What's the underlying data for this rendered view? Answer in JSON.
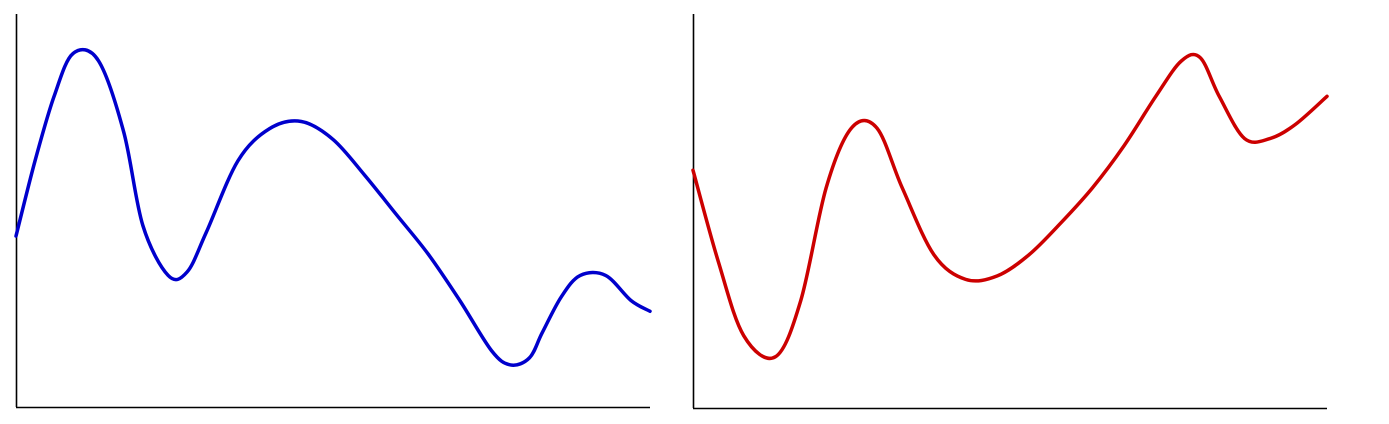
{
  "chart_data": [
    {
      "type": "line",
      "title": "",
      "xlabel": "",
      "ylabel": "",
      "grid": false,
      "xlim": [
        0,
        10
      ],
      "ylim": [
        0,
        10
      ],
      "series": [
        {
          "color": "#0000cc",
          "x": [
            0,
            0.3,
            0.6,
            0.9,
            1.3,
            1.7,
            2.0,
            2.4,
            2.7,
            3.0,
            3.5,
            4.0,
            4.5,
            5.0,
            5.5,
            6.0,
            6.5,
            7.0,
            7.5,
            7.8,
            8.1,
            8.3,
            8.6,
            8.9,
            9.3,
            9.7,
            10.0
          ],
          "y": [
            4.3,
            6.4,
            8.2,
            9.4,
            9.2,
            7.2,
            4.6,
            3.2,
            3.3,
            4.4,
            6.4,
            7.3,
            7.5,
            7.0,
            6.0,
            4.9,
            3.8,
            2.5,
            1.1,
            0.7,
            0.9,
            1.6,
            2.6,
            3.2,
            3.2,
            2.5,
            2.2
          ]
        }
      ]
    },
    {
      "type": "line",
      "title": "",
      "xlabel": "",
      "ylabel": "",
      "grid": false,
      "xlim": [
        0,
        10
      ],
      "ylim": [
        0,
        10
      ],
      "series": [
        {
          "color": "#cc0000",
          "x": [
            0,
            0.4,
            0.8,
            1.3,
            1.7,
            2.1,
            2.5,
            2.9,
            3.3,
            3.8,
            4.3,
            4.8,
            5.3,
            5.8,
            6.3,
            6.8,
            7.3,
            7.7,
            8.0,
            8.3,
            8.7,
            9.1,
            9.5,
            10.0
          ],
          "y": [
            6.3,
            3.7,
            1.6,
            1.0,
            2.6,
            5.8,
            7.5,
            7.5,
            5.8,
            3.9,
            3.2,
            3.3,
            3.9,
            4.8,
            5.8,
            7.0,
            8.4,
            9.4,
            9.5,
            8.4,
            7.2,
            7.2,
            7.6,
            8.4
          ]
        }
      ]
    }
  ]
}
